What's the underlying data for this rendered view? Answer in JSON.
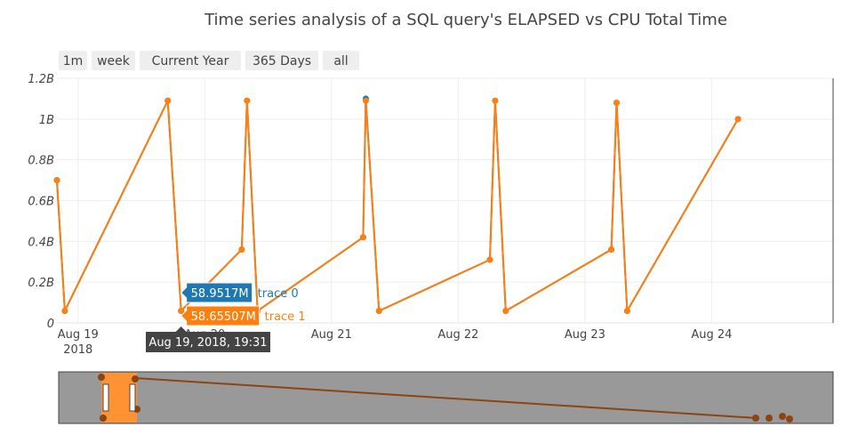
{
  "chart_data": {
    "type": "line",
    "title": "Time series analysis of a SQL query's ELAPSED vs CPU Total Time",
    "xlabel": "",
    "ylabel": "",
    "x_range": [
      "2018-08-18 20:00",
      "2018-08-24 23:00"
    ],
    "ylim": [
      0,
      1.2
    ],
    "y_unit": "B",
    "y_ticks": [
      {
        "value": 0,
        "label": "0"
      },
      {
        "value": 0.2,
        "label": "0.2B"
      },
      {
        "value": 0.4,
        "label": "0.4B"
      },
      {
        "value": 0.6,
        "label": "0.6B"
      },
      {
        "value": 0.8,
        "label": "0.8B"
      },
      {
        "value": 1.0,
        "label": "1B"
      },
      {
        "value": 1.2,
        "label": "1.2B"
      }
    ],
    "x_ticks": [
      {
        "t": "2018-08-19 00:00",
        "label": "Aug 19",
        "sublabel": "2018"
      },
      {
        "t": "2018-08-20 00:00",
        "label": "Aug 20",
        "sublabel": ""
      },
      {
        "t": "2018-08-21 00:00",
        "label": "Aug 21",
        "sublabel": ""
      },
      {
        "t": "2018-08-22 00:00",
        "label": "Aug 22",
        "sublabel": ""
      },
      {
        "t": "2018-08-23 00:00",
        "label": "Aug 23",
        "sublabel": ""
      },
      {
        "t": "2018-08-24 00:00",
        "label": "Aug 24",
        "sublabel": ""
      }
    ],
    "grid": true,
    "series": [
      {
        "name": "trace 0",
        "color": "#1f77b4",
        "points": [
          {
            "t": "2018-08-18 20:00",
            "y": 0.7
          },
          {
            "t": "2018-08-18 21:30",
            "y": 0.059
          },
          {
            "t": "2018-08-19 17:00",
            "y": 1.09
          },
          {
            "t": "2018-08-19 19:31",
            "y": 0.0589517
          },
          {
            "t": "2018-08-20 07:00",
            "y": 0.36
          },
          {
            "t": "2018-08-20 08:00",
            "y": 1.09
          },
          {
            "t": "2018-08-20 10:00",
            "y": 0.059
          },
          {
            "t": "2018-08-21 06:00",
            "y": 0.42
          },
          {
            "t": "2018-08-21 06:30",
            "y": 1.1
          },
          {
            "t": "2018-08-21 09:00",
            "y": 0.059
          },
          {
            "t": "2018-08-22 06:00",
            "y": 0.31
          },
          {
            "t": "2018-08-22 07:00",
            "y": 1.09
          },
          {
            "t": "2018-08-22 09:00",
            "y": 0.059
          },
          {
            "t": "2018-08-23 05:00",
            "y": 0.36
          },
          {
            "t": "2018-08-23 06:00",
            "y": 1.08
          },
          {
            "t": "2018-08-23 08:00",
            "y": 0.059
          },
          {
            "t": "2018-08-24 05:00",
            "y": 1.0
          }
        ]
      },
      {
        "name": "trace 1",
        "color": "#ff7f0e",
        "points": [
          {
            "t": "2018-08-18 20:00",
            "y": 0.7
          },
          {
            "t": "2018-08-18 21:30",
            "y": 0.059
          },
          {
            "t": "2018-08-19 17:00",
            "y": 1.09
          },
          {
            "t": "2018-08-19 19:31",
            "y": 0.05865507
          },
          {
            "t": "2018-08-20 07:00",
            "y": 0.36
          },
          {
            "t": "2018-08-20 08:00",
            "y": 1.09
          },
          {
            "t": "2018-08-20 10:00",
            "y": 0.059
          },
          {
            "t": "2018-08-21 06:00",
            "y": 0.42
          },
          {
            "t": "2018-08-21 06:30",
            "y": 1.09
          },
          {
            "t": "2018-08-21 09:00",
            "y": 0.059
          },
          {
            "t": "2018-08-22 06:00",
            "y": 0.31
          },
          {
            "t": "2018-08-22 07:00",
            "y": 1.09
          },
          {
            "t": "2018-08-22 09:00",
            "y": 0.059
          },
          {
            "t": "2018-08-23 05:00",
            "y": 0.36
          },
          {
            "t": "2018-08-23 06:00",
            "y": 1.08
          },
          {
            "t": "2018-08-23 08:00",
            "y": 0.059
          },
          {
            "t": "2018-08-24 05:00",
            "y": 1.0
          }
        ]
      }
    ],
    "hover": {
      "x_label": "Aug 19, 2018, 19:31",
      "items": [
        {
          "value": "58.9517M",
          "name": "trace 0",
          "color": "#1f77b4"
        },
        {
          "value": "58.65507M",
          "name": "trace 1",
          "color": "#ff7f0e"
        }
      ]
    }
  },
  "range_selector": {
    "buttons": [
      "1m",
      "week",
      "Current Year",
      "365 Days",
      "all"
    ]
  },
  "range_slider": {
    "background": "#999999",
    "trace_color": "#8b4513",
    "highlight_color": "#ff7f0e"
  }
}
